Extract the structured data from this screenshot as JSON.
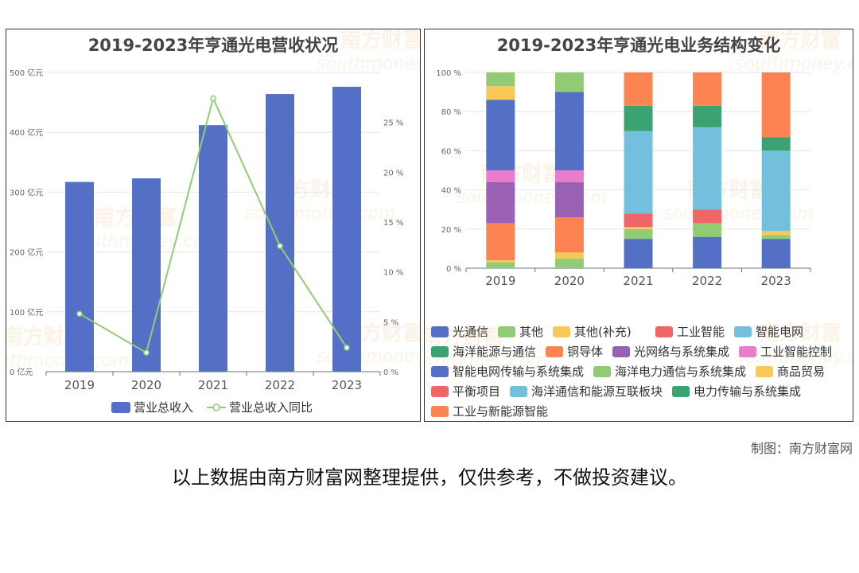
{
  "watermark": {
    "brand": "南方财富",
    "site": "southmoney.com",
    "brand_color": "#f2b06a"
  },
  "chart_data": [
    {
      "type": "bar",
      "title": "2019-2023年亨通光电营收状况",
      "categories": [
        "2019",
        "2020",
        "2021",
        "2022",
        "2023"
      ],
      "series": [
        {
          "name": "营业总收入",
          "kind": "bar",
          "axis": "left",
          "color": "#5470c6",
          "values": [
            317,
            323,
            412,
            464,
            476
          ]
        },
        {
          "name": "营业总收入同比",
          "kind": "line",
          "axis": "right",
          "color": "#91cc75",
          "values": [
            5.8,
            1.9,
            27.4,
            12.6,
            2.4
          ]
        }
      ],
      "y_left": {
        "min": 0,
        "max": 500,
        "step": 100,
        "unit": " 亿元"
      },
      "y_right": {
        "min": 0,
        "max": 30,
        "step": 5,
        "unit": " %"
      },
      "grid": true,
      "legend": "bottom"
    },
    {
      "type": "bar",
      "stacked": true,
      "title": "2019-2023年亨通光电业务结构变化",
      "categories": [
        "2019",
        "2020",
        "2021",
        "2022",
        "2023"
      ],
      "y": {
        "min": 0,
        "max": 100,
        "step": 20,
        "unit": " %"
      },
      "legend": "bottom",
      "series": [
        {
          "name": "光通信",
          "color": "#5470c6",
          "values": [
            36,
            40,
            0,
            0,
            0
          ]
        },
        {
          "name": "其他",
          "color": "#91cc75",
          "values": [
            7,
            10,
            0,
            0,
            0
          ]
        },
        {
          "name": "其他(补充)",
          "color": "#fac858",
          "values": [
            7,
            0,
            0,
            0,
            0
          ]
        },
        {
          "name": "工业智能",
          "color": "#ee6666",
          "values": [
            0,
            0,
            0,
            0,
            0
          ]
        },
        {
          "name": "智能电网",
          "color": "#73c0de",
          "values": [
            0,
            0,
            0,
            0,
            0
          ]
        },
        {
          "name": "海洋能源与通信",
          "color": "#3ba272",
          "values": [
            0,
            0,
            0,
            0,
            0
          ]
        },
        {
          "name": "铜导体",
          "color": "#fc8452",
          "values": [
            19,
            18,
            0,
            0,
            0
          ]
        },
        {
          "name": "光网络与系统集成",
          "color": "#9a60b4",
          "values": [
            21,
            18,
            0,
            0,
            0
          ]
        },
        {
          "name": "工业智能控制",
          "color": "#ea7ccc",
          "values": [
            6,
            6,
            0,
            0,
            0
          ]
        },
        {
          "name": "智能电网传输与系统集成",
          "color": "#5470c6",
          "values": [
            0,
            0,
            15,
            16,
            15
          ]
        },
        {
          "name": "海洋电力通信与系统集成",
          "color": "#91cc75",
          "values": [
            3,
            5,
            5,
            7,
            2
          ]
        },
        {
          "name": "商品贸易",
          "color": "#fac858",
          "values": [
            1,
            3,
            1,
            0,
            2
          ]
        },
        {
          "name": "平衡项目",
          "color": "#ee6666",
          "values": [
            0,
            0,
            7,
            7,
            0
          ]
        },
        {
          "name": "海洋通信和能源互联板块",
          "color": "#73c0de",
          "values": [
            0,
            0,
            42,
            42,
            41
          ]
        },
        {
          "name": "电力传输与系统集成",
          "color": "#3ba272",
          "values": [
            0,
            0,
            13,
            11,
            7
          ]
        },
        {
          "name": "工业与新能源智能",
          "color": "#fc8452",
          "values": [
            0,
            0,
            17,
            17,
            33
          ]
        }
      ],
      "stack_order": [
        [
          10,
          11,
          6,
          7,
          8,
          0,
          2,
          1
        ],
        [
          10,
          11,
          6,
          7,
          8,
          0,
          1
        ],
        [
          9,
          10,
          11,
          12,
          13,
          14,
          15
        ],
        [
          9,
          10,
          12,
          13,
          14,
          15
        ],
        [
          9,
          10,
          11,
          13,
          14,
          15
        ]
      ]
    }
  ],
  "footer": {
    "credit": "制图：南方财富网",
    "disclaimer": "以上数据由南方财富网整理提供，仅供参考，不做投资建议。"
  }
}
